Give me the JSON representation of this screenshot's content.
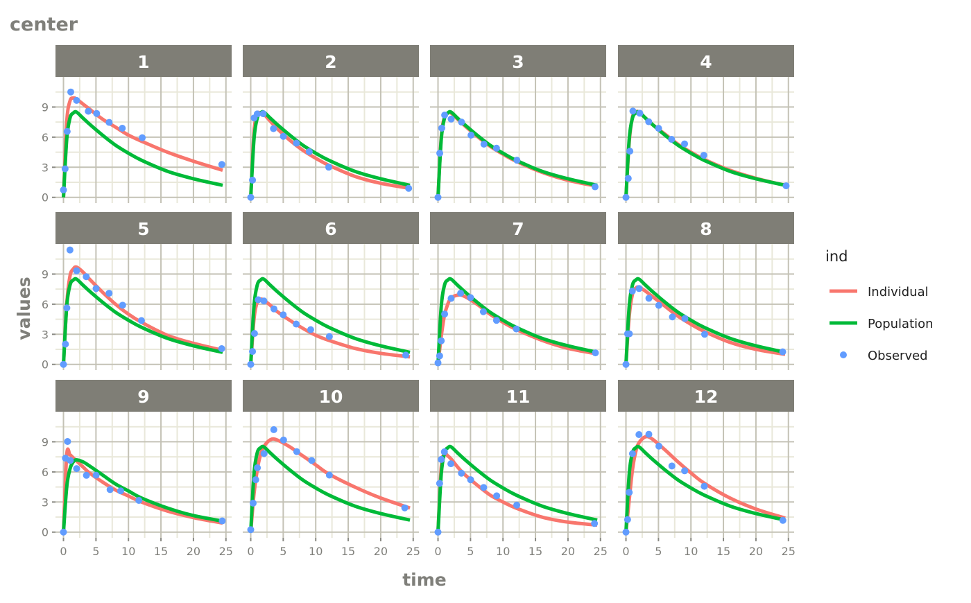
{
  "chart_data": {
    "type": "line",
    "title": "center",
    "xlabel": "time",
    "ylabel": "values",
    "xlim": [
      -1.23,
      25.88
    ],
    "ylim": [
      -0.57,
      12.0
    ],
    "x_ticks": [
      0,
      5,
      10,
      15,
      20,
      25
    ],
    "y_ticks": [
      0,
      3,
      6,
      9
    ],
    "grid": true,
    "facet_layout": "3 rows x 4 columns",
    "legend": {
      "title": "ind",
      "placement": "right",
      "entries": [
        {
          "name": "Individual",
          "kind": "line",
          "color": "#F8766D"
        },
        {
          "name": "Population",
          "kind": "line",
          "color": "#00BA38"
        },
        {
          "name": "Observed",
          "kind": "point",
          "color": "#619CFF"
        }
      ]
    },
    "curve_times": [
      0,
      0.5,
      1,
      1.5,
      2,
      3,
      4,
      6,
      8,
      10,
      12,
      16,
      20,
      24.5
    ],
    "panels": [
      {
        "label": "1",
        "individual": [
          0,
          7.5,
          9.6,
          9.9,
          9.8,
          9.3,
          8.8,
          7.8,
          7.0,
          6.2,
          5.6,
          4.5,
          3.6,
          2.7
        ],
        "population": [
          0,
          5.8,
          7.9,
          8.4,
          8.5,
          7.9,
          7.3,
          6.2,
          5.2,
          4.4,
          3.7,
          2.6,
          1.85,
          1.2
        ],
        "observed": [
          [
            0,
            0.74
          ],
          [
            0.25,
            2.84
          ],
          [
            0.57,
            6.57
          ],
          [
            1.12,
            10.5
          ],
          [
            2.02,
            9.66
          ],
          [
            3.82,
            8.58
          ],
          [
            5.1,
            8.36
          ],
          [
            7.03,
            7.47
          ],
          [
            9.05,
            6.89
          ],
          [
            12.12,
            5.94
          ],
          [
            24.37,
            3.28
          ]
        ]
      },
      {
        "label": "2",
        "individual": [
          0,
          6.5,
          8.3,
          8.4,
          8.3,
          7.6,
          6.9,
          5.7,
          4.7,
          3.9,
          3.2,
          2.1,
          1.4,
          0.9
        ],
        "population": [
          0,
          5.8,
          7.9,
          8.4,
          8.5,
          7.9,
          7.3,
          6.2,
          5.2,
          4.4,
          3.7,
          2.6,
          1.85,
          1.2
        ],
        "observed": [
          [
            0,
            0
          ],
          [
            0.27,
            1.72
          ],
          [
            0.52,
            7.91
          ],
          [
            1,
            8.31
          ],
          [
            1.92,
            8.33
          ],
          [
            3.5,
            6.85
          ],
          [
            5.02,
            6.08
          ],
          [
            7.03,
            5.4
          ],
          [
            9,
            4.55
          ],
          [
            12,
            3.01
          ],
          [
            24.3,
            0.9
          ]
        ]
      },
      {
        "label": "3",
        "individual": [
          0,
          6.0,
          8.0,
          8.4,
          8.4,
          7.8,
          7.2,
          6.1,
          5.1,
          4.3,
          3.6,
          2.5,
          1.7,
          1.1
        ],
        "population": [
          0,
          5.8,
          7.9,
          8.4,
          8.5,
          7.9,
          7.3,
          6.2,
          5.2,
          4.4,
          3.7,
          2.6,
          1.85,
          1.2
        ],
        "observed": [
          [
            0,
            0
          ],
          [
            0.27,
            4.4
          ],
          [
            0.58,
            6.9
          ],
          [
            1.02,
            8.2
          ],
          [
            2.02,
            7.8
          ],
          [
            3.62,
            7.5
          ],
          [
            5.08,
            6.2
          ],
          [
            7.07,
            5.3
          ],
          [
            9,
            4.9
          ],
          [
            12.15,
            3.7
          ],
          [
            24.17,
            1.05
          ]
        ]
      },
      {
        "label": "4",
        "individual": [
          0,
          5.5,
          8.0,
          8.5,
          8.5,
          7.9,
          7.3,
          6.3,
          5.3,
          4.5,
          3.8,
          2.7,
          1.9,
          1.2
        ],
        "population": [
          0,
          5.8,
          7.9,
          8.4,
          8.5,
          7.9,
          7.3,
          6.2,
          5.2,
          4.4,
          3.7,
          2.6,
          1.85,
          1.2
        ],
        "observed": [
          [
            0,
            0
          ],
          [
            0.35,
            1.89
          ],
          [
            0.6,
            4.6
          ],
          [
            1.07,
            8.6
          ],
          [
            2.13,
            8.38
          ],
          [
            3.5,
            7.54
          ],
          [
            5.02,
            6.88
          ],
          [
            7.02,
            5.78
          ],
          [
            9.02,
            5.33
          ],
          [
            11.98,
            4.19
          ],
          [
            24.65,
            1.15
          ]
        ]
      },
      {
        "label": "5",
        "individual": [
          0,
          6.0,
          8.8,
          9.5,
          9.7,
          9.2,
          8.5,
          7.2,
          6.0,
          5.0,
          4.2,
          2.9,
          2.1,
          1.4
        ],
        "population": [
          0,
          5.8,
          7.9,
          8.4,
          8.5,
          7.9,
          7.3,
          6.2,
          5.2,
          4.4,
          3.7,
          2.6,
          1.85,
          1.2
        ],
        "observed": [
          [
            0,
            0
          ],
          [
            0.3,
            2.02
          ],
          [
            0.52,
            5.63
          ],
          [
            1,
            11.4
          ],
          [
            2.02,
            9.33
          ],
          [
            3.5,
            8.74
          ],
          [
            5.02,
            7.56
          ],
          [
            7.02,
            7.09
          ],
          [
            9.1,
            5.9
          ],
          [
            12,
            4.37
          ],
          [
            24.35,
            1.57
          ]
        ]
      },
      {
        "label": "6",
        "individual": [
          0,
          4.5,
          6.2,
          6.5,
          6.4,
          5.9,
          5.3,
          4.4,
          3.6,
          2.9,
          2.4,
          1.6,
          1.1,
          0.75
        ],
        "population": [
          0,
          5.8,
          7.9,
          8.4,
          8.5,
          7.9,
          7.3,
          6.2,
          5.2,
          4.4,
          3.7,
          2.6,
          1.85,
          1.2
        ],
        "observed": [
          [
            0,
            0
          ],
          [
            0.27,
            1.29
          ],
          [
            0.58,
            3.08
          ],
          [
            1.15,
            6.44
          ],
          [
            2.03,
            6.32
          ],
          [
            3.57,
            5.53
          ],
          [
            5,
            4.94
          ],
          [
            7,
            4.02
          ],
          [
            9.22,
            3.46
          ],
          [
            12.1,
            2.78
          ],
          [
            23.85,
            0.92
          ]
        ]
      },
      {
        "label": "7",
        "individual": [
          0,
          2.8,
          4.9,
          6.0,
          6.6,
          6.9,
          6.8,
          6.0,
          5.0,
          4.2,
          3.5,
          2.4,
          1.6,
          1.05
        ],
        "population": [
          0,
          5.8,
          7.9,
          8.4,
          8.5,
          7.9,
          7.3,
          6.2,
          5.2,
          4.4,
          3.7,
          2.6,
          1.85,
          1.2
        ],
        "observed": [
          [
            0,
            0.15
          ],
          [
            0.25,
            0.85
          ],
          [
            0.5,
            2.35
          ],
          [
            1.02,
            5.02
          ],
          [
            2.02,
            6.58
          ],
          [
            3.48,
            7.09
          ],
          [
            5,
            6.66
          ],
          [
            6.98,
            5.25
          ],
          [
            9,
            4.39
          ],
          [
            12.05,
            3.53
          ],
          [
            24.22,
            1.15
          ]
        ]
      },
      {
        "label": "8",
        "individual": [
          0,
          4.8,
          7.0,
          7.6,
          7.7,
          7.3,
          6.8,
          5.8,
          4.8,
          4.0,
          3.3,
          2.2,
          1.5,
          1.0
        ],
        "population": [
          0,
          5.8,
          7.9,
          8.4,
          8.5,
          7.9,
          7.3,
          6.2,
          5.2,
          4.4,
          3.7,
          2.6,
          1.85,
          1.2
        ],
        "observed": [
          [
            0,
            0
          ],
          [
            0.25,
            3.05
          ],
          [
            0.52,
            3.05
          ],
          [
            0.98,
            7.31
          ],
          [
            2.02,
            7.56
          ],
          [
            3.53,
            6.59
          ],
          [
            5.05,
            5.88
          ],
          [
            7.15,
            4.73
          ],
          [
            9.07,
            4.57
          ],
          [
            12.1,
            3
          ],
          [
            24.12,
            1.25
          ]
        ]
      },
      {
        "label": "9",
        "individual": [
          0,
          7.7,
          7.7,
          7.4,
          7.1,
          6.5,
          5.9,
          5.0,
          4.2,
          3.6,
          3.0,
          2.1,
          1.45,
          0.9
        ],
        "population": [
          0,
          4.5,
          6.3,
          7.0,
          7.2,
          7.0,
          6.6,
          5.7,
          4.8,
          4.1,
          3.4,
          2.4,
          1.65,
          1.1
        ],
        "observed": [
          [
            0,
            0
          ],
          [
            0.3,
            7.37
          ],
          [
            0.63,
            9.03
          ],
          [
            1.05,
            7.14
          ],
          [
            2.02,
            6.33
          ],
          [
            3.53,
            5.66
          ],
          [
            5.02,
            5.67
          ],
          [
            7.17,
            4.24
          ],
          [
            8.8,
            4.11
          ],
          [
            11.6,
            3.16
          ],
          [
            24.43,
            1.12
          ]
        ]
      },
      {
        "label": "10",
        "individual": [
          0,
          3.8,
          6.2,
          7.7,
          8.5,
          9.2,
          9.2,
          8.5,
          7.6,
          6.7,
          5.8,
          4.5,
          3.4,
          2.4
        ],
        "population": [
          0,
          5.8,
          7.9,
          8.4,
          8.5,
          7.9,
          7.3,
          6.2,
          5.2,
          4.4,
          3.7,
          2.6,
          1.85,
          1.2
        ],
        "observed": [
          [
            0,
            0.24
          ],
          [
            0.37,
            2.89
          ],
          [
            0.77,
            5.22
          ],
          [
            1.02,
            6.41
          ],
          [
            2.05,
            7.83
          ],
          [
            3.55,
            10.21
          ],
          [
            5.05,
            9.18
          ],
          [
            7.08,
            8.02
          ],
          [
            9.38,
            7.14
          ],
          [
            12.1,
            5.68
          ],
          [
            23.7,
            2.42
          ]
        ]
      },
      {
        "label": "11",
        "individual": [
          0,
          6.5,
          7.8,
          7.6,
          7.3,
          6.5,
          5.8,
          4.7,
          3.7,
          3.0,
          2.4,
          1.5,
          1.0,
          0.7
        ],
        "population": [
          0,
          5.8,
          7.9,
          8.4,
          8.5,
          7.9,
          7.3,
          6.2,
          5.2,
          4.4,
          3.7,
          2.6,
          1.85,
          1.2
        ],
        "observed": [
          [
            0,
            0
          ],
          [
            0.25,
            4.86
          ],
          [
            0.5,
            7.24
          ],
          [
            0.98,
            8
          ],
          [
            1.98,
            6.81
          ],
          [
            3.6,
            5.87
          ],
          [
            5.02,
            5.22
          ],
          [
            7.03,
            4.45
          ],
          [
            9.03,
            3.62
          ],
          [
            12.12,
            2.69
          ],
          [
            24.08,
            0.86
          ]
        ]
      },
      {
        "label": "12",
        "individual": [
          0,
          3.2,
          6.2,
          8.0,
          8.9,
          9.5,
          9.3,
          8.2,
          7.0,
          5.9,
          4.9,
          3.4,
          2.3,
          1.4
        ],
        "population": [
          0,
          5.8,
          7.9,
          8.4,
          8.5,
          7.9,
          7.3,
          6.2,
          5.2,
          4.4,
          3.7,
          2.6,
          1.85,
          1.2
        ],
        "observed": [
          [
            0,
            0
          ],
          [
            0.25,
            1.25
          ],
          [
            0.5,
            3.96
          ],
          [
            1,
            7.82
          ],
          [
            2,
            9.72
          ],
          [
            3.52,
            9.75
          ],
          [
            5.07,
            8.57
          ],
          [
            7.07,
            6.59
          ],
          [
            9.03,
            6.11
          ],
          [
            12.05,
            4.57
          ],
          [
            24.15,
            1.17
          ]
        ]
      }
    ]
  }
}
